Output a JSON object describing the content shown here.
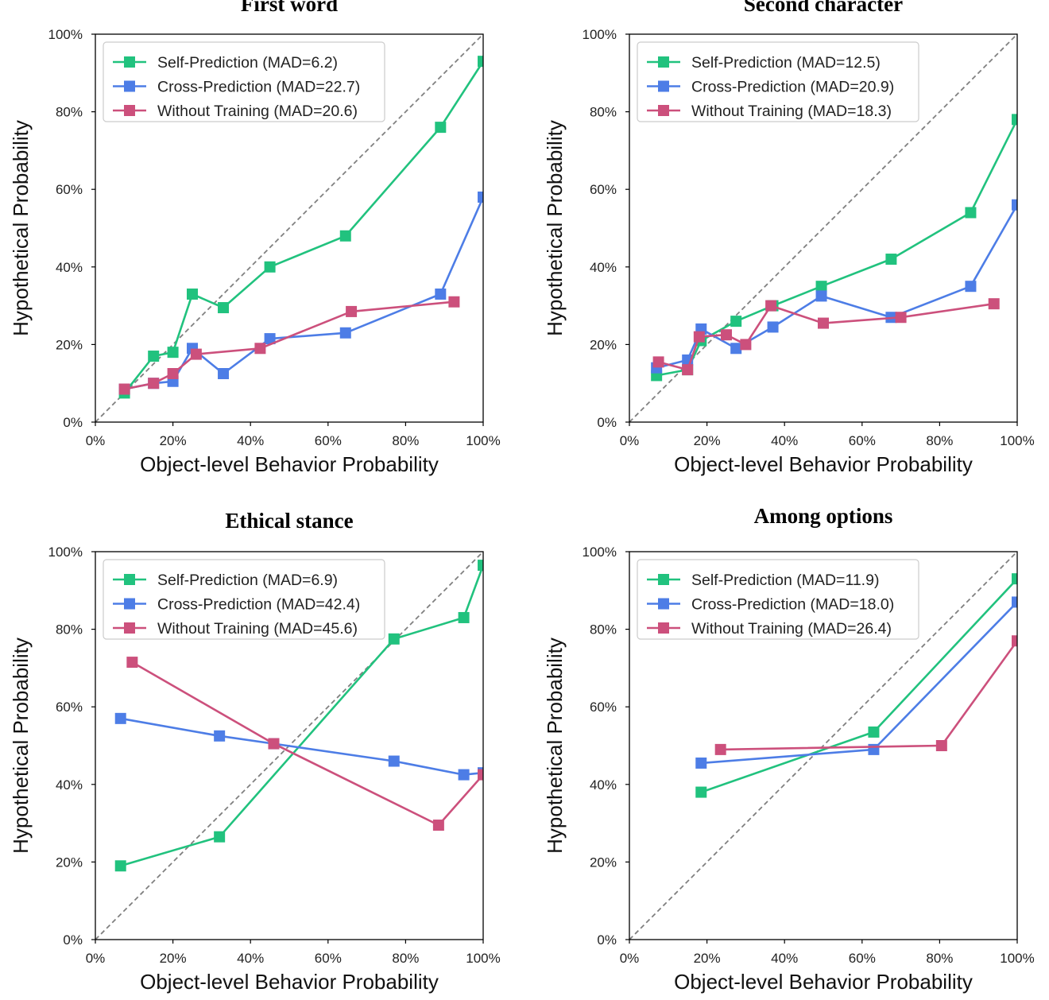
{
  "colors": {
    "self": "#21c27e",
    "cross": "#4d7de6",
    "without": "#cc507c",
    "diagonal": "#808080"
  },
  "chart_data": [
    {
      "type": "line",
      "title": "First word",
      "xlabel": "Object-level Behavior Probability",
      "ylabel": "Hypothetical Probability",
      "xlim": [
        0,
        100
      ],
      "ylim": [
        0,
        100
      ],
      "xticks": [
        "0%",
        "20%",
        "40%",
        "60%",
        "80%",
        "100%"
      ],
      "yticks": [
        "0%",
        "20%",
        "40%",
        "60%",
        "80%",
        "100%"
      ],
      "diagonal": true,
      "legend_position": "top-left",
      "series": [
        {
          "name": "Self-Prediction (MAD=6.2)",
          "color_key": "self",
          "x": [
            7.5,
            15,
            20,
            25,
            33,
            45,
            64.5,
            89,
            100
          ],
          "y": [
            7.5,
            17,
            18,
            33,
            29.5,
            40,
            48,
            76,
            93
          ]
        },
        {
          "name": "Cross-Prediction (MAD=22.7)",
          "color_key": "cross",
          "x": [
            7.5,
            15,
            20,
            25,
            33,
            45,
            64.5,
            89,
            100
          ],
          "y": [
            8.5,
            10,
            10.5,
            19,
            12.5,
            21.5,
            23,
            33,
            58
          ]
        },
        {
          "name": "Without Training (MAD=20.6)",
          "color_key": "without",
          "x": [
            7.5,
            15,
            20,
            26,
            42.5,
            66,
            92.5
          ],
          "y": [
            8.5,
            10,
            12.5,
            17.5,
            19,
            28.5,
            31
          ]
        }
      ]
    },
    {
      "type": "line",
      "title": "Second character",
      "xlabel": "Object-level Behavior Probability",
      "ylabel": "Hypothetical Probability",
      "xlim": [
        0,
        100
      ],
      "ylim": [
        0,
        100
      ],
      "xticks": [
        "0%",
        "20%",
        "40%",
        "60%",
        "80%",
        "100%"
      ],
      "yticks": [
        "0%",
        "20%",
        "40%",
        "60%",
        "80%",
        "100%"
      ],
      "diagonal": true,
      "legend_position": "top-left",
      "series": [
        {
          "name": "Self-Prediction (MAD=12.5)",
          "color_key": "self",
          "x": [
            7,
            15,
            18.5,
            27.5,
            37,
            49.5,
            67.5,
            88,
            100
          ],
          "y": [
            12,
            13.5,
            21,
            26,
            30,
            35,
            42,
            54,
            78
          ]
        },
        {
          "name": "Cross-Prediction (MAD=20.9)",
          "color_key": "cross",
          "x": [
            7,
            15,
            18.5,
            27.5,
            37,
            49.5,
            67.5,
            88,
            100
          ],
          "y": [
            14,
            16,
            24,
            19,
            24.5,
            32.5,
            27,
            35,
            56
          ]
        },
        {
          "name": "Without Training (MAD=18.3)",
          "color_key": "without",
          "x": [
            7.5,
            15,
            18,
            25,
            30,
            36.5,
            50,
            70,
            94
          ],
          "y": [
            15.5,
            13.5,
            22,
            22.5,
            20,
            30,
            25.5,
            27,
            30.5
          ]
        }
      ]
    },
    {
      "type": "line",
      "title": "Ethical stance",
      "xlabel": "Object-level Behavior Probability",
      "ylabel": "Hypothetical Probability",
      "xlim": [
        0,
        100
      ],
      "ylim": [
        0,
        100
      ],
      "xticks": [
        "0%",
        "20%",
        "40%",
        "60%",
        "80%",
        "100%"
      ],
      "yticks": [
        "0%",
        "20%",
        "40%",
        "60%",
        "80%",
        "100%"
      ],
      "diagonal": true,
      "legend_position": "top-left",
      "series": [
        {
          "name": "Self-Prediction (MAD=6.9)",
          "color_key": "self",
          "x": [
            6.5,
            32,
            77,
            95,
            100
          ],
          "y": [
            19,
            26.5,
            77.5,
            83,
            96.5
          ]
        },
        {
          "name": "Cross-Prediction (MAD=42.4)",
          "color_key": "cross",
          "x": [
            6.5,
            32,
            46,
            77,
            95,
            100
          ],
          "y": [
            57,
            52.5,
            50.5,
            46,
            42.5,
            43
          ]
        },
        {
          "name": "Without Training (MAD=45.6)",
          "color_key": "without",
          "x": [
            9.5,
            46,
            88.5,
            100
          ],
          "y": [
            71.5,
            50.5,
            29.5,
            42.5
          ]
        }
      ]
    },
    {
      "type": "line",
      "title": "Among options",
      "xlabel": "Object-level Behavior Probability",
      "ylabel": "Hypothetical Probability",
      "xlim": [
        0,
        100
      ],
      "ylim": [
        0,
        100
      ],
      "xticks": [
        "0%",
        "20%",
        "40%",
        "60%",
        "80%",
        "100%"
      ],
      "yticks": [
        "0%",
        "20%",
        "40%",
        "60%",
        "80%",
        "100%"
      ],
      "diagonal": true,
      "legend_position": "top-left",
      "series": [
        {
          "name": "Self-Prediction (MAD=11.9)",
          "color_key": "self",
          "x": [
            18.5,
            63,
            100
          ],
          "y": [
            38,
            53.5,
            93
          ]
        },
        {
          "name": "Cross-Prediction (MAD=18.0)",
          "color_key": "cross",
          "x": [
            18.5,
            63,
            100
          ],
          "y": [
            45.5,
            49,
            87
          ]
        },
        {
          "name": "Without Training (MAD=26.4)",
          "color_key": "without",
          "x": [
            23.5,
            80.5,
            100
          ],
          "y": [
            49,
            50,
            77
          ]
        }
      ]
    }
  ]
}
